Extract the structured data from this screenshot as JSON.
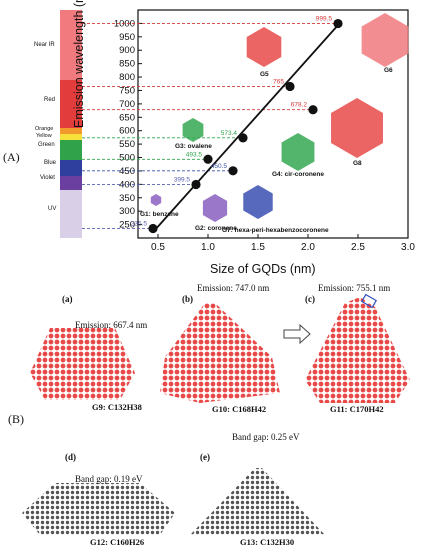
{
  "panel_labels": {
    "A": "(A)",
    "B": "(B)"
  },
  "spectrum_bands": [
    {
      "label": "Near IR",
      "color": "#f07a7e"
    },
    {
      "label": "Red",
      "color": "#e23c3c"
    },
    {
      "label": "Orange",
      "color": "#f39a2c"
    },
    {
      "label": "Yellow",
      "color": "#f6e23a"
    },
    {
      "label": "Green",
      "color": "#2fa24a"
    },
    {
      "label": "Blue",
      "color": "#2f3f9e"
    },
    {
      "label": "Violet",
      "color": "#6b3fa0"
    },
    {
      "label": "UV",
      "color": "#d9d0e8"
    }
  ],
  "chart_data": {
    "type": "scatter",
    "xlabel": "Size of GQDs (nm)",
    "ylabel": "Emission wavelength (nm)",
    "xlim": [
      0.3,
      3.0
    ],
    "ylim": [
      200,
      1050
    ],
    "xticks": [
      "0.5",
      "1.0",
      "1.5",
      "2.0",
      "2.5",
      "3.0"
    ],
    "yticks": [
      "250",
      "300",
      "350",
      "400",
      "450",
      "500",
      "550",
      "600",
      "650",
      "700",
      "750",
      "800",
      "850",
      "900",
      "950",
      "1000"
    ],
    "points": [
      {
        "x": 0.45,
        "y": 235.5,
        "label": "235.5",
        "color": "#5a5fb0"
      },
      {
        "x": 0.88,
        "y": 399.5,
        "label": "399.5",
        "color": "#5a5fb0"
      },
      {
        "x": 1.0,
        "y": 493.5,
        "label": "493.5",
        "color": "#2fa24a"
      },
      {
        "x": 1.25,
        "y": 450.5,
        "label": "450.5",
        "color": "#3a4fa8"
      },
      {
        "x": 1.35,
        "y": 573.4,
        "label": "573.4",
        "color": "#2fa24a"
      },
      {
        "x": 1.82,
        "y": 765,
        "label": "765",
        "color": "#d43a3a"
      },
      {
        "x": 2.05,
        "y": 678.2,
        "label": "678.2",
        "color": "#d43a3a"
      },
      {
        "x": 2.3,
        "y": 999.5,
        "label": "999.5",
        "color": "#d43a3a"
      }
    ],
    "fit_line": {
      "x": [
        0.45,
        2.32
      ],
      "y": [
        222,
        1002
      ]
    },
    "annotations": [
      "G1: benzene",
      "G2: coronene",
      "G3: ovalene",
      "G4: cir-coronene",
      "G5",
      "G6",
      "G7: hexa-peri-hexabenzocoronene",
      "G8"
    ]
  },
  "panel_b": {
    "a": {
      "tag": "(a)",
      "emission": "Emission: 667.4 nm",
      "caption": "G9: C132H38"
    },
    "b": {
      "tag": "(b)",
      "emission": "Emission: 747.0 nm",
      "caption": "G10: C168H42"
    },
    "c": {
      "tag": "(c)",
      "emission": "Emission: 755.1 nm",
      "caption": "G11: C170H42"
    },
    "d": {
      "tag": "(d)",
      "gap": "Band gap: 0.19 eV",
      "caption": "G12: C160H26"
    },
    "e": {
      "tag": "(e)",
      "gap": "Band gap: 0.25 eV",
      "caption": "G13: C132H30"
    }
  },
  "colors": {
    "red_molecule": "#e84a4a",
    "gray_molecule": "#555555",
    "green_molecule": "#35a852",
    "blue_molecule": "#3a4fb0",
    "purple_molecule": "#8a5fc0"
  }
}
